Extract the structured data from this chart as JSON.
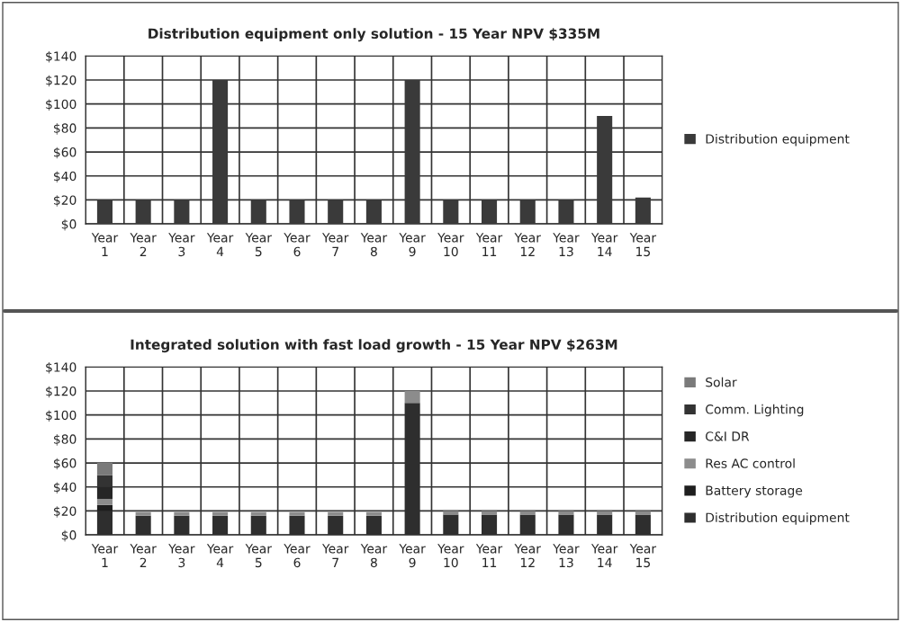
{
  "chart_data": [
    {
      "type": "bar",
      "title": "Distribution equipment only solution - 15 Year NPV $335M",
      "categories": [
        "Year\n1",
        "Year\n2",
        "Year\n3",
        "Year\n4",
        "Year\n5",
        "Year\n6",
        "Year\n7",
        "Year\n8",
        "Year\n9",
        "Year\n10",
        "Year\n11",
        "Year\n12",
        "Year\n13",
        "Year\n14",
        "Year\n15"
      ],
      "series": [
        {
          "name": "Distribution equipment",
          "color": "#3a3a3a",
          "values": [
            20,
            20,
            20,
            120,
            20,
            20,
            20,
            20,
            120,
            20,
            20,
            20,
            20,
            90,
            22
          ]
        }
      ],
      "ylim": [
        0,
        140
      ],
      "yticks": [
        {
          "value": 0,
          "label": "$0"
        },
        {
          "value": 20,
          "label": "$20"
        },
        {
          "value": 40,
          "label": "$40"
        },
        {
          "value": 60,
          "label": "$60"
        },
        {
          "value": 80,
          "label": "$80"
        },
        {
          "value": 100,
          "label": "$100"
        },
        {
          "value": 120,
          "label": "$120"
        },
        {
          "value": 140,
          "label": "$140"
        }
      ],
      "grid": true,
      "legend": "right"
    },
    {
      "type": "bar",
      "title": "Integrated solution with fast load growth - 15 Year NPV $263M",
      "categories": [
        "Year\n1",
        "Year\n2",
        "Year\n3",
        "Year\n4",
        "Year\n5",
        "Year\n6",
        "Year\n7",
        "Year\n8",
        "Year\n9",
        "Year\n10",
        "Year\n11",
        "Year\n12",
        "Year\n13",
        "Year\n14",
        "Year\n15"
      ],
      "stacked": true,
      "series": [
        {
          "name": "Distribution equipment",
          "color": "#2e2e2e",
          "values": [
            20,
            16,
            16,
            16,
            16,
            16,
            16,
            16,
            110,
            17,
            17,
            17,
            17,
            17,
            17
          ]
        },
        {
          "name": "Battery storage",
          "color": "#1e1e1e",
          "values": [
            5,
            null,
            null,
            null,
            null,
            null,
            null,
            null,
            null,
            null,
            null,
            null,
            null,
            null,
            null
          ]
        },
        {
          "name": "Res AC control",
          "color": "#8c8c8c",
          "values": [
            5,
            3,
            3,
            3,
            3,
            3,
            3,
            3,
            10,
            3,
            3,
            3,
            3,
            3,
            3
          ]
        },
        {
          "name": "C&I DR",
          "color": "#262626",
          "values": [
            10,
            null,
            null,
            null,
            null,
            null,
            null,
            null,
            null,
            null,
            null,
            null,
            null,
            null,
            null
          ]
        },
        {
          "name": "Comm. Lighting",
          "color": "#333333",
          "values": [
            10,
            null,
            null,
            null,
            null,
            null,
            null,
            null,
            null,
            null,
            null,
            null,
            null,
            null,
            null
          ]
        },
        {
          "name": "Solar",
          "color": "#7a7a7a",
          "values": [
            10,
            null,
            null,
            null,
            null,
            null,
            null,
            null,
            null,
            null,
            null,
            null,
            null,
            null,
            null
          ]
        }
      ],
      "ylim": [
        0,
        140
      ],
      "yticks": [
        {
          "value": 0,
          "label": "$0"
        },
        {
          "value": 20,
          "label": "$20"
        },
        {
          "value": 40,
          "label": "$40"
        },
        {
          "value": 60,
          "label": "$60"
        },
        {
          "value": 80,
          "label": "$80"
        },
        {
          "value": 100,
          "label": "$100"
        },
        {
          "value": 120,
          "label": "$120"
        },
        {
          "value": 140,
          "label": "$140"
        }
      ],
      "grid": true,
      "legend": "right"
    }
  ]
}
